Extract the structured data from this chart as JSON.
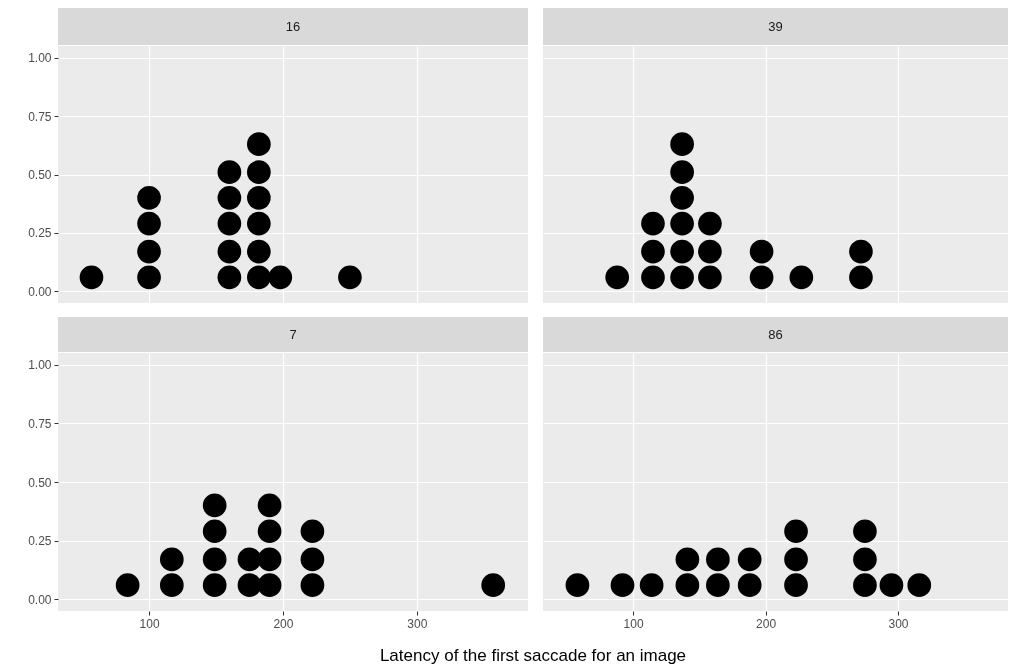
{
  "chart_data": [
    {
      "type": "scatter",
      "title": "16",
      "x": [
        57,
        100,
        100,
        100,
        100,
        160,
        160,
        160,
        160,
        160,
        182,
        182,
        182,
        182,
        182,
        182,
        198,
        250
      ],
      "series": [
        {
          "color": "#000000",
          "values": [
            0.06,
            0.06,
            0.17,
            0.29,
            0.4,
            0.06,
            0.17,
            0.29,
            0.4,
            0.51,
            0.06,
            0.17,
            0.29,
            0.4,
            0.51,
            0.63,
            0.06,
            0.06
          ]
        }
      ],
      "xlim": [
        32,
        383
      ],
      "xticks": [
        100,
        200,
        300
      ],
      "ylim": [
        -0.05,
        1.05
      ],
      "yticks": [
        {
          "value": 0,
          "label": "0.00"
        },
        {
          "value": 0.25,
          "label": "0.25"
        },
        {
          "value": 0.5,
          "label": "0.50"
        },
        {
          "value": 0.75,
          "label": "0.75"
        },
        {
          "value": 1,
          "label": "1.00"
        }
      ],
      "grid": true,
      "marker": "circle",
      "tick_labels": "y"
    },
    {
      "type": "scatter",
      "title": "39",
      "x": [
        88,
        115,
        115,
        115,
        137,
        137,
        137,
        137,
        137,
        137,
        158,
        158,
        158,
        197,
        197,
        227,
        272,
        272
      ],
      "series": [
        {
          "color": "#000000",
          "values": [
            0.06,
            0.06,
            0.17,
            0.29,
            0.06,
            0.17,
            0.29,
            0.4,
            0.51,
            0.63,
            0.06,
            0.17,
            0.29,
            0.06,
            0.17,
            0.06,
            0.06,
            0.17
          ]
        }
      ],
      "xlim": [
        32,
        383
      ],
      "xticks": [
        100,
        200,
        300
      ],
      "ylim": [
        -0.05,
        1.05
      ],
      "yticks": [
        0,
        0.25,
        0.5,
        0.75,
        1
      ],
      "grid": true,
      "marker": "circle",
      "tick_labels": false
    },
    {
      "type": "scatter",
      "title": "7",
      "xlabel": "Latency of the first saccade for an image",
      "x": [
        84,
        117,
        117,
        149,
        149,
        149,
        149,
        175,
        175,
        190,
        190,
        190,
        190,
        222,
        222,
        222,
        357
      ],
      "series": [
        {
          "color": "#000000",
          "values": [
            0.06,
            0.06,
            0.17,
            0.06,
            0.17,
            0.29,
            0.4,
            0.06,
            0.17,
            0.06,
            0.17,
            0.29,
            0.4,
            0.06,
            0.17,
            0.29,
            0.06
          ]
        }
      ],
      "xlim": [
        32,
        383
      ],
      "xticks": [
        100,
        200,
        300
      ],
      "ylim": [
        -0.05,
        1.05
      ],
      "yticks": [
        {
          "value": 0,
          "label": "0.00"
        },
        {
          "value": 0.25,
          "label": "0.25"
        },
        {
          "value": 0.5,
          "label": "0.50"
        },
        {
          "value": 0.75,
          "label": "0.75"
        },
        {
          "value": 1,
          "label": "1.00"
        }
      ],
      "grid": true,
      "marker": "circle"
    },
    {
      "type": "scatter",
      "title": "86",
      "x": [
        58,
        92,
        114,
        141,
        141,
        164,
        164,
        188,
        188,
        223,
        223,
        223,
        275,
        275,
        275,
        295,
        316
      ],
      "series": [
        {
          "color": "#000000",
          "values": [
            0.06,
            0.06,
            0.06,
            0.06,
            0.17,
            0.06,
            0.17,
            0.06,
            0.17,
            0.06,
            0.17,
            0.29,
            0.06,
            0.17,
            0.29,
            0.06,
            0.06
          ]
        }
      ],
      "xlim": [
        32,
        383
      ],
      "xticks": [
        100,
        200,
        300
      ],
      "ylim": [
        -0.05,
        1.05
      ],
      "yticks": [
        0,
        0.25,
        0.5,
        0.75,
        1
      ],
      "grid": true,
      "marker": "circle",
      "tick_labels": "x"
    }
  ]
}
